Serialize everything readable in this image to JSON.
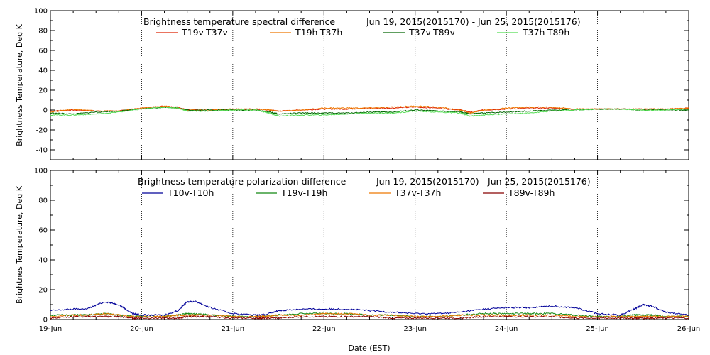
{
  "chart_data": [
    {
      "type": "line",
      "title": "Brightness temperature spectral difference",
      "date_range": "Jun 19, 2015(2015170) - Jun 25, 2015(2015176)",
      "ylabel": "Brightness Temperature, Deg K",
      "xlabel": "",
      "ylim": [
        -50,
        100
      ],
      "xlim": [
        0,
        7
      ],
      "y_ticks": [
        "100",
        "80",
        "60",
        "40",
        "20",
        "0",
        "-20",
        "-40"
      ],
      "grid": "vertical dotted at each day",
      "legend_placement": "top, inside plot",
      "x": [
        0,
        0.25,
        0.5,
        0.75,
        1.0,
        1.25,
        1.4,
        1.5,
        1.75,
        2.0,
        2.25,
        2.4,
        2.5,
        2.75,
        3.0,
        3.25,
        3.5,
        3.75,
        4.0,
        4.25,
        4.5,
        4.6,
        4.75,
        5.0,
        5.25,
        5.5,
        5.75,
        6.0,
        6.25,
        6.5,
        6.75,
        7.0
      ],
      "series": [
        {
          "name": "T19v-T37v",
          "color": "#dd2200",
          "values": [
            -1,
            0,
            -1,
            -1,
            2,
            4,
            3,
            0,
            0,
            1,
            1,
            0,
            -1,
            0,
            1,
            1,
            2,
            2,
            3,
            2,
            0,
            -2,
            0,
            1,
            2,
            2,
            1,
            1,
            1,
            1,
            1,
            2
          ]
        },
        {
          "name": "T19h-T37h",
          "color": "#ee7700",
          "values": [
            -2,
            1,
            -1,
            -1,
            2,
            4,
            2,
            0,
            0,
            1,
            1,
            0,
            -1,
            0,
            2,
            2,
            2,
            3,
            4,
            3,
            0,
            -3,
            0,
            2,
            3,
            3,
            1,
            1,
            1,
            1,
            1,
            2
          ]
        },
        {
          "name": "T37v-T89v",
          "color": "#006600",
          "values": [
            -3,
            -4,
            -2,
            -1,
            1,
            3,
            2,
            0,
            0,
            0,
            0,
            -2,
            -4,
            -3,
            -3,
            -3,
            -2,
            -2,
            0,
            -1,
            -2,
            -4,
            -3,
            -2,
            -1,
            0,
            0,
            1,
            1,
            0,
            0,
            0
          ]
        },
        {
          "name": "T37h-T89h",
          "color": "#55dd55",
          "values": [
            -5,
            -5,
            -4,
            -2,
            1,
            3,
            2,
            -1,
            -1,
            0,
            0,
            -3,
            -6,
            -5,
            -5,
            -4,
            -3,
            -3,
            -1,
            -2,
            -3,
            -6,
            -5,
            -4,
            -3,
            -1,
            0,
            1,
            1,
            0,
            0,
            1
          ]
        }
      ]
    },
    {
      "type": "line",
      "title": "Brightness temperature polarization difference",
      "date_range": "Jun 19, 2015(2015170) - Jun 25, 2015(2015176)",
      "ylabel": "Brightnes Temperature, Deg K",
      "xlabel": "Date (EST)",
      "ylim": [
        0,
        100
      ],
      "xlim": [
        0,
        7
      ],
      "y_ticks": [
        "100",
        "80",
        "60",
        "40",
        "20",
        "0"
      ],
      "x_tick_labels": [
        "19-Jun",
        "20-Jun",
        "21-Jun",
        "22-Jun",
        "23-Jun",
        "24-Jun",
        "25-Jun",
        "26-Jun"
      ],
      "grid": "vertical dotted at each day",
      "legend_placement": "top, inside plot",
      "x": [
        0,
        0.25,
        0.4,
        0.6,
        0.75,
        0.9,
        1.0,
        1.25,
        1.4,
        1.5,
        1.6,
        1.75,
        2.0,
        2.25,
        2.35,
        2.5,
        2.75,
        3.0,
        3.25,
        3.5,
        3.75,
        4.0,
        4.25,
        4.5,
        4.75,
        5.0,
        5.25,
        5.5,
        5.75,
        6.0,
        6.25,
        6.4,
        6.5,
        6.6,
        6.75,
        7.0
      ],
      "series": [
        {
          "name": "T10v-T10h",
          "color": "#000099",
          "values": [
            6,
            7,
            7,
            12,
            10,
            4,
            3,
            3,
            6,
            12,
            12,
            8,
            4,
            3,
            3,
            6,
            7,
            7,
            7,
            6,
            5,
            4,
            4,
            5,
            7,
            8,
            8,
            9,
            8,
            4,
            3,
            7,
            10,
            9,
            5,
            3
          ]
        },
        {
          "name": "T19v-T19h",
          "color": "#118811",
          "values": [
            3,
            3,
            3,
            4,
            3,
            2,
            2,
            2,
            3,
            4,
            4,
            3,
            2,
            2,
            2,
            3,
            4,
            4,
            4,
            3,
            3,
            2,
            2,
            3,
            4,
            4,
            4,
            4,
            3,
            2,
            2,
            3,
            3,
            3,
            2,
            2
          ]
        },
        {
          "name": "T37v-T37h",
          "color": "#ee7700",
          "values": [
            2,
            3,
            3,
            4,
            3,
            2,
            2,
            2,
            3,
            3,
            3,
            3,
            2,
            2,
            2,
            3,
            3,
            4,
            4,
            3,
            3,
            2,
            2,
            3,
            3,
            3,
            3,
            3,
            2,
            2,
            2,
            2,
            2,
            2,
            2,
            2
          ]
        },
        {
          "name": "T89v-T89h",
          "color": "#880000",
          "values": [
            1,
            2,
            2,
            2,
            2,
            1,
            1,
            1,
            1,
            2,
            2,
            2,
            1,
            1,
            1,
            1,
            2,
            2,
            2,
            2,
            1,
            1,
            1,
            1,
            2,
            2,
            2,
            2,
            1,
            1,
            1,
            1,
            1,
            1,
            1,
            1
          ]
        }
      ]
    }
  ]
}
